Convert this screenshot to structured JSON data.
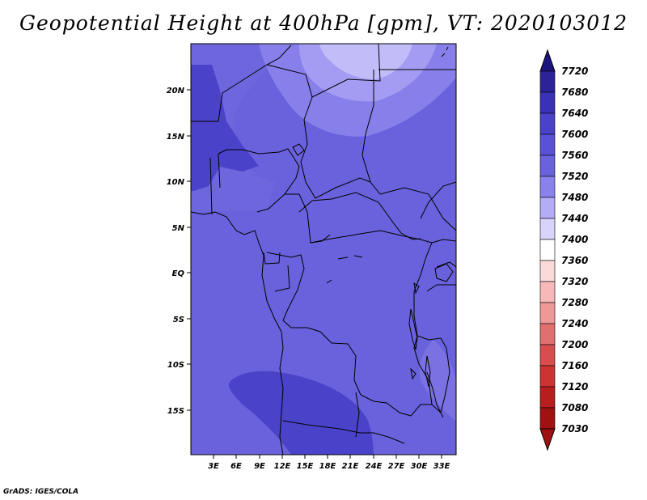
{
  "title": "Geopotential Height at 400hPa [gpm], VT: 2020103012",
  "credit": "GrADS: IGES/COLA",
  "lat_labels": [
    "20N",
    "15N",
    "10N",
    "5N",
    "EQ",
    "5S",
    "10S",
    "15S"
  ],
  "lon_labels": [
    "3E",
    "6E",
    "9E",
    "12E",
    "15E",
    "18E",
    "21E",
    "24E",
    "27E",
    "30E",
    "33E"
  ],
  "colorbar": {
    "levels": [
      "7720",
      "7680",
      "7640",
      "7600",
      "7560",
      "7520",
      "7480",
      "7440",
      "7400",
      "7360",
      "7320",
      "7280",
      "7240",
      "7200",
      "7160",
      "7120",
      "7080",
      "7030"
    ],
    "colors": [
      "#1c1480",
      "#2c2398",
      "#3a32b6",
      "#4a42c8",
      "#5a52d6",
      "#6a62dc",
      "#8a82ec",
      "#b3acf6",
      "#d7d3fb",
      "#ffffff",
      "#fbdada",
      "#f6b8b8",
      "#ee9898",
      "#e07070",
      "#d84e4e",
      "#cc3434",
      "#b81e1e",
      "#a01212"
    ]
  },
  "map_colors": {
    "c7440": "#b7b0f8",
    "c7480": "#a49cf3",
    "c7520": "#7a72e2",
    "c7560": "#6e66dd",
    "c7600": "#4a42c8",
    "border": "#000000"
  }
}
